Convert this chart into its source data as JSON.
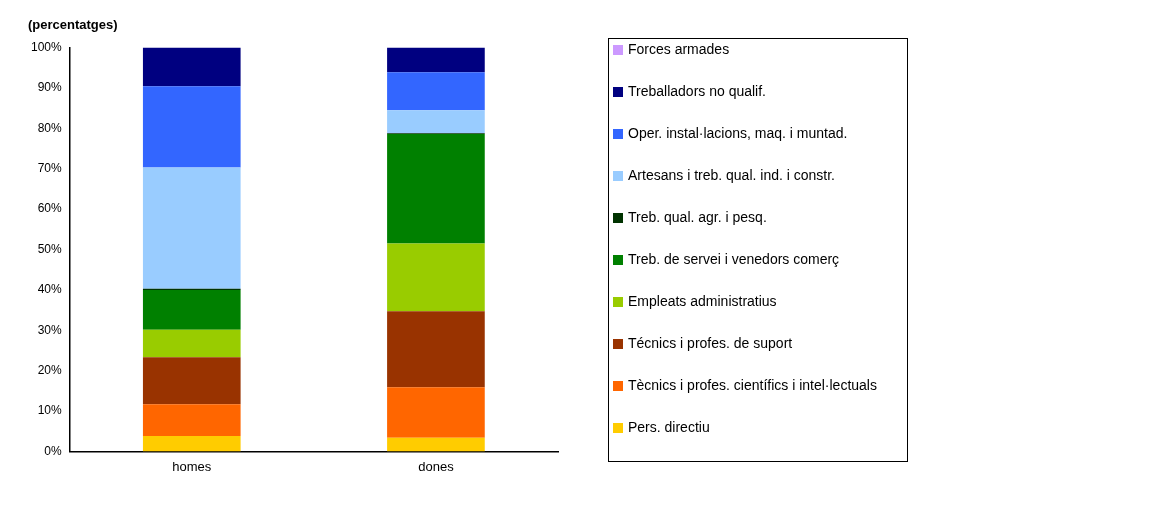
{
  "chart_data": {
    "type": "bar",
    "title": "(percentatges)",
    "stacked": true,
    "categories": [
      "homes",
      "dones"
    ],
    "ylim": [
      0,
      100
    ],
    "yticks": [
      {
        "value": 0,
        "label": "0%"
      },
      {
        "value": 10,
        "label": "10%"
      },
      {
        "value": 20,
        "label": "20%"
      },
      {
        "value": 30,
        "label": "30%"
      },
      {
        "value": 40,
        "label": "40%"
      },
      {
        "value": 50,
        "label": "50%"
      },
      {
        "value": 60,
        "label": "60%"
      },
      {
        "value": 70,
        "label": "70%"
      },
      {
        "value": 80,
        "label": "80%"
      },
      {
        "value": 90,
        "label": "90%"
      },
      {
        "value": 100,
        "label": "100%"
      }
    ],
    "grid": false,
    "legend": "right",
    "series": [
      {
        "name": "Pers. directiu",
        "color": "#ffcc00",
        "values": [
          3.8,
          3.4
        ]
      },
      {
        "name": "Tècnics i profes. científics i intel·lectuals",
        "color": "#ff6600",
        "values": [
          7.9,
          12.5
        ]
      },
      {
        "name": "Técnics i profes. de suport",
        "color": "#993300",
        "values": [
          11.6,
          18.8
        ]
      },
      {
        "name": "Empleats administratius",
        "color": "#99cc00",
        "values": [
          6.8,
          16.8
        ]
      },
      {
        "name": "Treb. de servei i venedors comerç",
        "color": "#008000",
        "values": [
          9.9,
          27.1
        ]
      },
      {
        "name": "Treb. qual. agr. i pesq.",
        "color": "#003300",
        "values": [
          0.3,
          0.2
        ]
      },
      {
        "name": "Artesans i treb. qual. ind. i constr.",
        "color": "#99ccff",
        "values": [
          30.0,
          5.7
        ]
      },
      {
        "name": "Oper. instal·lacions, maq. i muntad.",
        "color": "#3366ff",
        "values": [
          20.1,
          9.4
        ]
      },
      {
        "name": "Treballadors no qualif.",
        "color": "#000080",
        "values": [
          9.6,
          6.1
        ]
      },
      {
        "name": "Forces armades",
        "color": "#cc99ff",
        "values": [
          0,
          0
        ]
      }
    ]
  }
}
